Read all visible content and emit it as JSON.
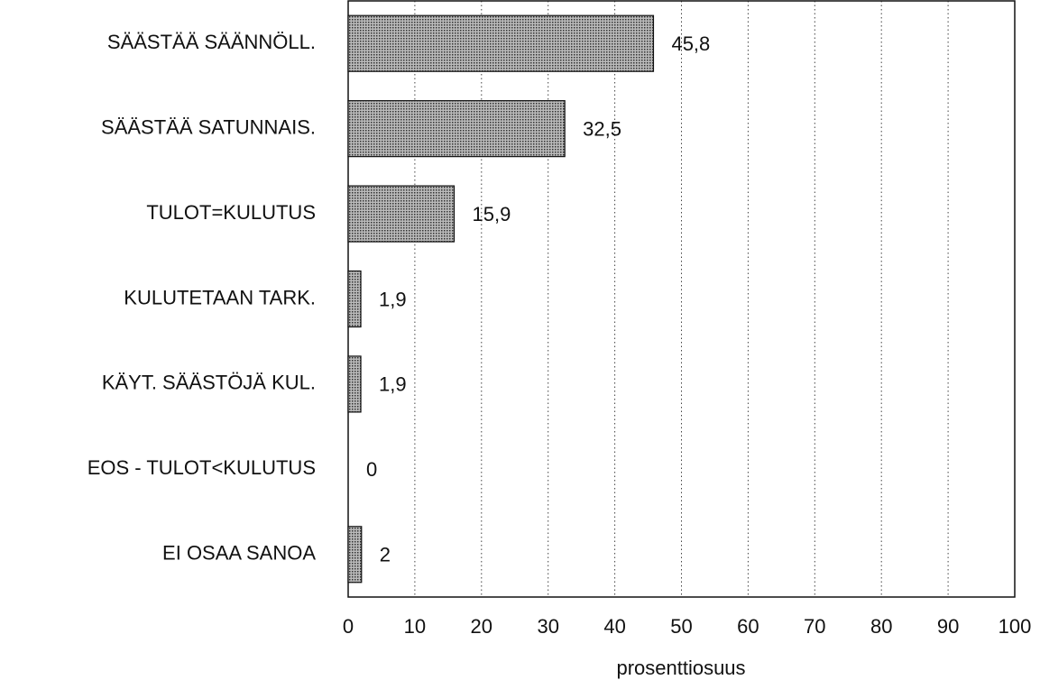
{
  "chart_data": {
    "type": "bar",
    "orientation": "horizontal",
    "categories": [
      "SÄÄSTÄÄ SÄÄNNÖLL.",
      "SÄÄSTÄÄ SATUNNAIS.",
      "TULOT=KULUTUS",
      "KULUTETAAN TARK.",
      "KÄYT. SÄÄSTÖJÄ KUL.",
      "EOS - TULOT<KULUTUS",
      "EI OSAA SANOA"
    ],
    "values": [
      45.8,
      32.5,
      15.9,
      1.9,
      1.9,
      0,
      2
    ],
    "value_labels": [
      "45,8",
      "32,5",
      "15,9",
      "1,9",
      "1,9",
      "0",
      "2"
    ],
    "color": "#888888",
    "xlabel": "prosenttiosuus",
    "xlim": [
      0,
      100
    ],
    "xticks": [
      0,
      10,
      20,
      30,
      40,
      50,
      60,
      70,
      80,
      90,
      100
    ],
    "grid": true
  }
}
